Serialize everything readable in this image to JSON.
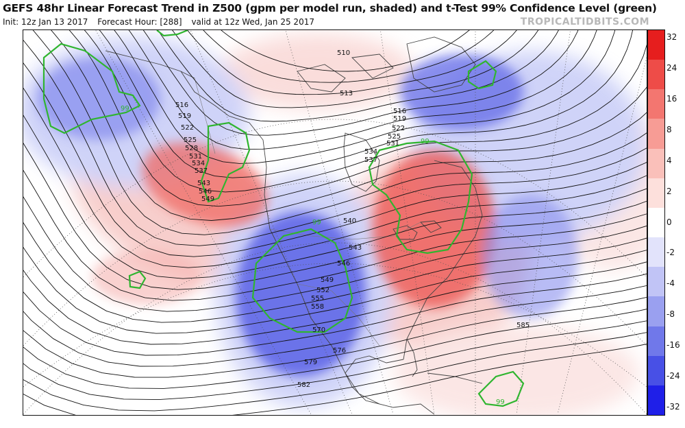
{
  "header": {
    "title": "GEFS 48hr Linear Forecast Trend in Z500 (gpm per model run, shaded) and t-Test 99% Confidence Level (green)",
    "init": "Init: 12z Jan 13 2017",
    "forecast_hour": "Forecast Hour: [288]",
    "valid": "valid at 12z Wed, Jan 25 2017",
    "source": "TROPICALTIDBITS.COM"
  },
  "colorbar": {
    "labels": [
      "32",
      "24",
      "16",
      "8",
      "4",
      "2",
      "0",
      "-2",
      "-4",
      "-8",
      "-16",
      "-24",
      "-32"
    ],
    "colors": [
      "#e61e1e",
      "#ee4c48",
      "#f37670",
      "#f79c95",
      "#fac0ba",
      "#fde0dc",
      "#ffffff",
      "#e2e3fb",
      "#c1c4f6",
      "#9aa0f0",
      "#7078ea",
      "#4850e6",
      "#1f1fe8"
    ]
  },
  "map": {
    "positive_color": "#f26b66",
    "negative_color": "#5e66e8",
    "confidence_color": "#2fb52f",
    "confidence_label": "99",
    "contour_labels": [
      "510",
      "513",
      "516",
      "519",
      "522",
      "525",
      "528",
      "531",
      "534",
      "537",
      "540",
      "543",
      "546",
      "549",
      "552",
      "555",
      "558",
      "570",
      "576",
      "579",
      "582",
      "585"
    ],
    "west_labels": [
      "516",
      "519",
      "522",
      "525",
      "528",
      "531",
      "534",
      "537",
      "543",
      "546",
      "549"
    ],
    "east_labels": [
      "516",
      "519",
      "522",
      "525",
      "531",
      "534",
      "537"
    ],
    "trough_labels": [
      "540",
      "543",
      "546",
      "549",
      "552",
      "555",
      "558"
    ],
    "south_labels": [
      "570",
      "576",
      "579",
      "582"
    ],
    "north_labels": [
      "510",
      "513"
    ],
    "carib_label": "585"
  }
}
